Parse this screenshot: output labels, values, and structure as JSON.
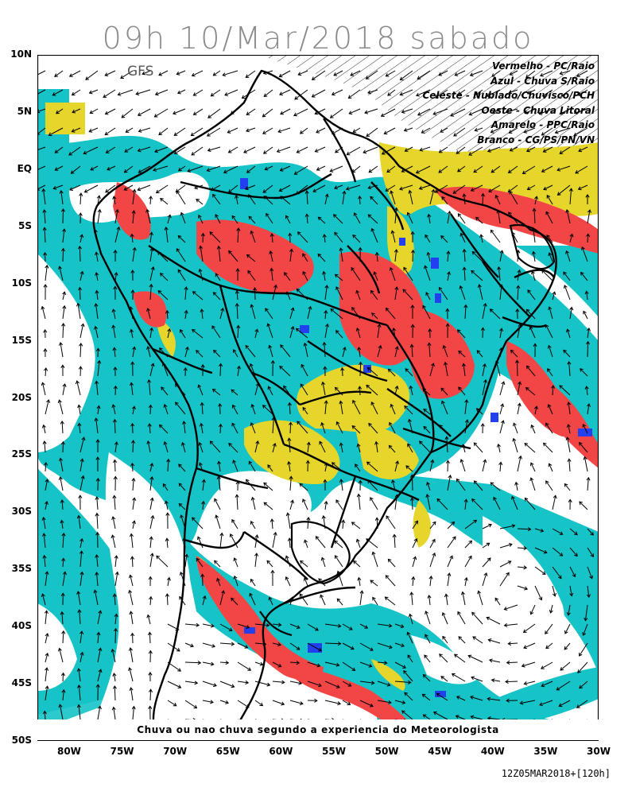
{
  "title": "09h 10/Mar/2018 sabado",
  "model_label": "GFS",
  "legend": [
    {
      "text": "Vermelho - PC/Raio",
      "color": "#f24646"
    },
    {
      "text": "Azul - Chuva S/Raio",
      "color": "#2340f0"
    },
    {
      "text": "Celeste - Nublado/Chuvisco/PCH",
      "color": "#16c4c8"
    },
    {
      "text": "Oeste - Chuva Litoral",
      "color": "#16c4c8"
    },
    {
      "text": "Amarelo - PPC/Raio",
      "color": "#e6d52a"
    },
    {
      "text": "Branco - CG/PS/PN/VN",
      "color": "#ffffff"
    }
  ],
  "footer_note": "Chuva ou nao chuva segundo a experiencia do Meteorologista",
  "run_info": "12Z05MAR2018+[120h]",
  "lat_labels": [
    "10N",
    "5N",
    "EQ",
    "5S",
    "10S",
    "15S",
    "20S",
    "25S",
    "30S",
    "35S",
    "40S",
    "45S",
    "50S"
  ],
  "lon_labels": [
    "80W",
    "75W",
    "70W",
    "65W",
    "60W",
    "55W",
    "50W",
    "45W",
    "40W",
    "35W",
    "30W"
  ],
  "map_extent": {
    "lon_min": -83,
    "lon_max": -30,
    "lat_min": -50,
    "lat_max": 10
  }
}
